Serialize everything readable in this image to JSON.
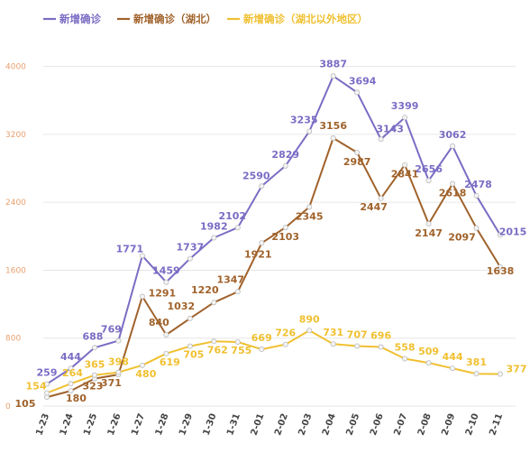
{
  "chart_data": {
    "type": "line",
    "title": "",
    "xlabel": "",
    "ylabel": "",
    "categories": [
      "1-23",
      "1-24",
      "1-25",
      "1-26",
      "1-27",
      "1-28",
      "1-29",
      "1-30",
      "1-31",
      "2-01",
      "2-02",
      "2-03",
      "2-04",
      "2-05",
      "2-06",
      "2-07",
      "2-08",
      "2-09",
      "2-10",
      "2-11"
    ],
    "ylim": [
      0,
      4400
    ],
    "yticks": [
      0,
      800,
      1600,
      2400,
      3200,
      4000
    ],
    "grid": "horizontal",
    "legend_position": "top-left",
    "series": [
      {
        "name": "新增确诊",
        "color": "#7b6cc4",
        "values": [
          259,
          444,
          688,
          769,
          1771,
          1459,
          1737,
          1982,
          2102,
          2590,
          2829,
          3235,
          3887,
          3694,
          3143,
          3399,
          2656,
          3062,
          2478,
          2015
        ]
      },
      {
        "name": "新增确诊（湖北）",
        "color": "#a0622b",
        "values": [
          105,
          180,
          323,
          371,
          1291,
          840,
          1032,
          1220,
          1347,
          1921,
          2103,
          2345,
          3156,
          2987,
          2447,
          2841,
          2147,
          2618,
          2097,
          1638
        ]
      },
      {
        "name": "新增确诊（湖北以外地区）",
        "color": "#f0c030",
        "values": [
          154,
          264,
          365,
          398,
          480,
          619,
          705,
          762,
          755,
          669,
          726,
          890,
          731,
          707,
          696,
          558,
          509,
          444,
          381,
          377
        ]
      }
    ]
  }
}
